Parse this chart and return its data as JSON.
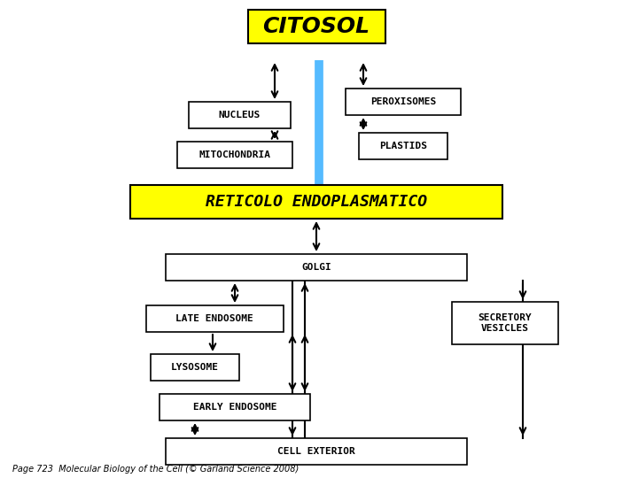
{
  "title": "CITOSOL",
  "title_bg": "#FFFF00",
  "re_label": "RETICOLO ENDOPLASMATICO",
  "re_bg": "#FFFF00",
  "blue_bar_color": "#55BBFF",
  "box_facecolor": "#FFFFFF",
  "box_edgecolor": "#000000",
  "background_color": "#FFFFFF",
  "footnote": "Page 723  Molecular Biology of the Cell (© Garland Science 2008)",
  "fig_w": 7.2,
  "fig_h": 5.4,
  "dpi": 100
}
